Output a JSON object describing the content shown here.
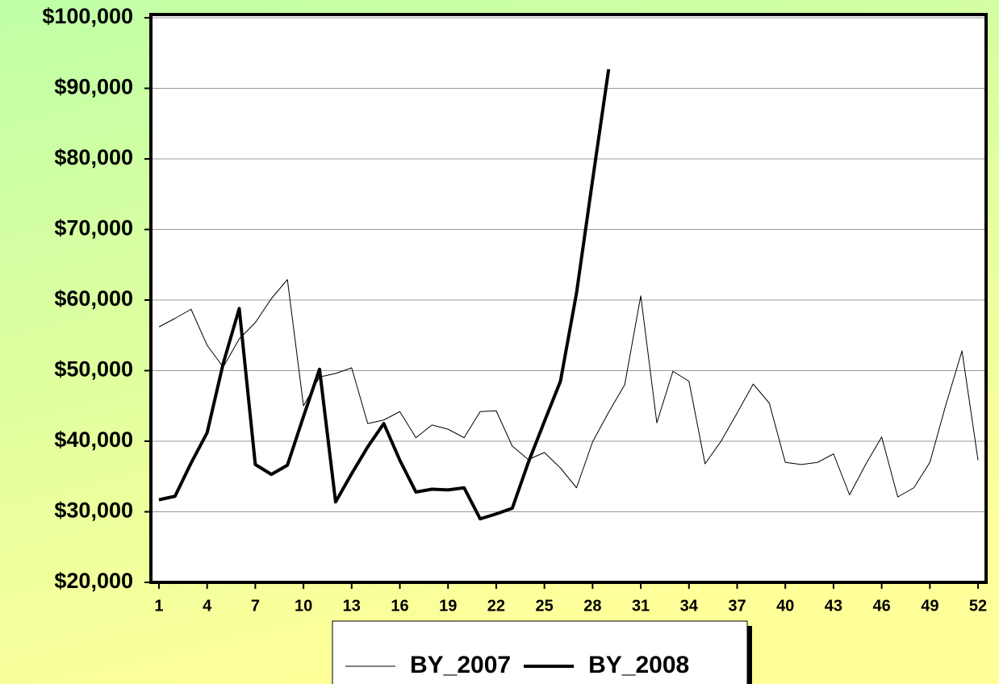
{
  "chart_data": {
    "type": "line",
    "x": [
      1,
      2,
      3,
      4,
      5,
      6,
      7,
      8,
      9,
      10,
      11,
      12,
      13,
      14,
      15,
      16,
      17,
      18,
      19,
      20,
      21,
      22,
      23,
      24,
      25,
      26,
      27,
      28,
      29,
      30,
      31,
      32,
      33,
      34,
      35,
      36,
      37,
      38,
      39,
      40,
      41,
      42,
      43,
      44,
      45,
      46,
      47,
      48,
      49,
      50,
      51,
      52
    ],
    "xlim": [
      0.5,
      52.5
    ],
    "xticks": [
      1,
      4,
      7,
      10,
      13,
      16,
      19,
      22,
      25,
      28,
      31,
      34,
      37,
      40,
      43,
      46,
      49,
      52
    ],
    "ylim": [
      20000,
      100000
    ],
    "yticks": [
      {
        "value": 20000,
        "label": "$20,000"
      },
      {
        "value": 30000,
        "label": "$30,000"
      },
      {
        "value": 40000,
        "label": "$40,000"
      },
      {
        "value": 50000,
        "label": "$50,000"
      },
      {
        "value": 60000,
        "label": "$60,000"
      },
      {
        "value": 70000,
        "label": "$70,000"
      },
      {
        "value": 80000,
        "label": "$80,000"
      },
      {
        "value": 90000,
        "label": "$90,000"
      },
      {
        "value": 100000,
        "label": "$100,000"
      }
    ],
    "grid": true,
    "legend": "bottom",
    "series": [
      {
        "name": "BY_2007",
        "color": "#000000",
        "width": 1,
        "values": [
          56200,
          57400,
          58700,
          53600,
          50500,
          54500,
          56800,
          60200,
          62900,
          45000,
          49100,
          49600,
          50400,
          42500,
          43000,
          44200,
          40500,
          42300,
          41700,
          40500,
          44200,
          44300,
          39300,
          37400,
          38400,
          36200,
          33400,
          39900,
          44100,
          48000,
          60600,
          42600,
          49900,
          48500,
          36800,
          40000,
          44000,
          48100,
          45400,
          37000,
          36700,
          37000,
          38200,
          32400,
          36700,
          40600,
          32100,
          33400,
          37000,
          45200,
          52800,
          37300
        ]
      },
      {
        "name": "BY_2008",
        "color": "#000000",
        "width": 4,
        "values": [
          31700,
          32200,
          36900,
          41200,
          51000,
          58800,
          36700,
          35300,
          36600,
          43500,
          50200,
          31400,
          35400,
          39200,
          42500,
          37300,
          32800,
          33200,
          33100,
          33400,
          29000,
          29700,
          30500,
          37000,
          42800,
          48500,
          61000,
          77000,
          92700,
          null,
          null,
          null,
          null,
          null,
          null,
          null,
          null,
          null,
          null,
          null,
          null,
          null,
          null,
          null,
          null,
          null,
          null,
          null,
          null,
          null,
          null,
          null
        ]
      }
    ]
  }
}
